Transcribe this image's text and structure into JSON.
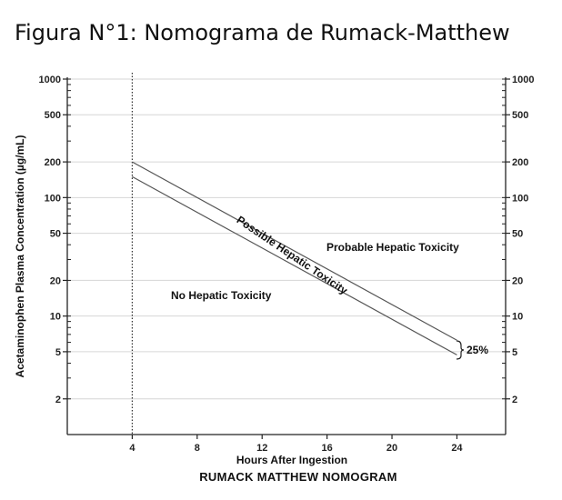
{
  "figure": {
    "title": "Figura N°1: Nomograma de Rumack-Matthew",
    "caption": "RUMACK MATTHEW NOMOGRAM"
  },
  "chart_data": {
    "type": "line",
    "xlabel": "Hours After Ingestion",
    "ylabel": "Acetaminophen Plasma Concentration (µg/mL)",
    "x_ticks": [
      4,
      8,
      12,
      16,
      20,
      24
    ],
    "xlim": [
      0,
      27
    ],
    "y_scale": "log",
    "ylim": [
      1,
      1000
    ],
    "y_ticks": [
      2,
      5,
      10,
      20,
      50,
      100,
      200,
      500,
      1000
    ],
    "y_tick_labels": [
      "2",
      "5",
      "10",
      "20",
      "50",
      "100",
      "200",
      "500",
      "1000"
    ],
    "vertical_marker_x": 4,
    "grid": "horizontal at labelled y ticks",
    "series": [
      {
        "x": [
          4,
          24
        ],
        "y": [
          200,
          6.25
        ]
      },
      {
        "x": [
          4,
          24
        ],
        "y": [
          150,
          4.7
        ]
      }
    ],
    "annotations": {
      "band": "Possible Hepatic Toxicity",
      "above": "Probable Hepatic Toxicity",
      "below": "No Hepatic Toxicity",
      "gap": "25%"
    }
  }
}
